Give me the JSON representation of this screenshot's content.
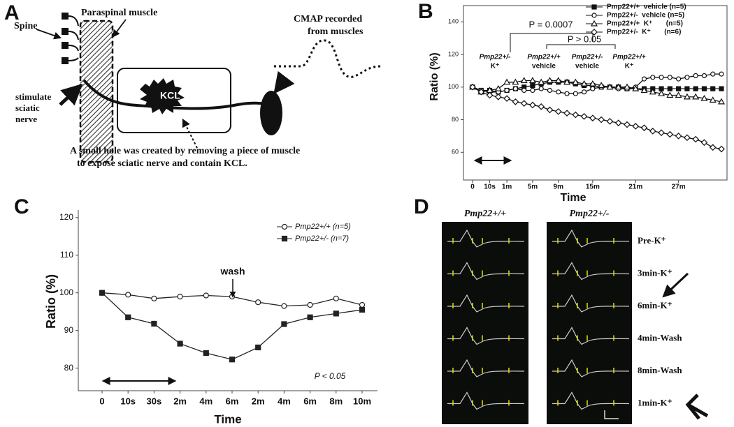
{
  "panel_labels": [
    "A",
    "B",
    "C",
    "D"
  ],
  "diagram": {
    "spine": "Spine",
    "muscle": "Paraspinal muscle",
    "stimulate": [
      "stimulate",
      "sciatic",
      "nerve"
    ],
    "kcl": "KCL",
    "cmap": [
      "CMAP recorded",
      "from muscles"
    ],
    "caption": [
      "A small hole was created by removing a piece of muscle",
      "to expose sciatic nerve and contain KCL."
    ]
  },
  "chart_data": [
    {
      "type": "line",
      "x_label": "Time",
      "y_label": "Ratio (%)",
      "categories": [
        "0",
        null,
        "10s",
        null,
        "1m",
        null,
        null,
        "5m",
        null,
        null,
        "9m",
        null,
        null,
        null,
        "15m",
        null,
        null,
        null,
        null,
        "21m",
        null,
        null,
        null,
        null,
        "27m",
        null,
        null,
        null,
        null,
        null
      ],
      "series": [
        {
          "name": "Pmp22+/+  vehicle (n=5)",
          "color": "#111111",
          "marker": "square",
          "values": [
            100,
            98,
            98,
            97,
            98,
            99,
            100,
            101,
            102,
            103,
            103,
            103,
            102,
            101,
            101,
            100,
            100,
            100,
            99,
            99,
            99,
            99,
            99,
            99,
            99,
            99,
            99,
            99,
            99,
            99
          ]
        },
        {
          "name": "Pmp22+/-  vehicle (n=5)",
          "color": "#111111",
          "marker": "circle",
          "values": [
            100,
            98,
            97,
            97,
            98,
            99,
            98,
            98,
            99,
            98,
            97,
            96,
            96,
            97,
            99,
            100,
            100,
            99,
            99,
            100,
            105,
            106,
            106,
            106,
            105,
            106,
            107,
            107,
            108,
            108
          ]
        },
        {
          "name": "Pmp22+/+  K⁺       (n=5)",
          "color": "#111111",
          "marker": "triangle",
          "values": [
            100,
            97,
            98,
            99,
            103,
            103,
            104,
            104,
            103,
            104,
            104,
            103,
            103,
            102,
            102,
            101,
            100,
            100,
            100,
            99,
            98,
            97,
            96,
            95,
            95,
            94,
            94,
            93,
            92,
            91
          ]
        },
        {
          "name": "Pmp22+/-  K⁺       (n=6)",
          "color": "#111111",
          "marker": "diamond",
          "values": [
            100,
            97,
            95,
            94,
            93,
            91,
            90,
            89,
            88,
            86,
            85,
            84,
            83,
            82,
            81,
            80,
            79,
            78,
            77,
            76,
            75,
            73,
            72,
            71,
            70,
            69,
            68,
            66,
            63,
            62
          ]
        }
      ],
      "ylim": [
        43,
        150
      ],
      "yticks": [
        60,
        80,
        100,
        120,
        140
      ],
      "legend": "upper right",
      "annotations": [
        "P = 0.0007",
        "P > 0.05"
      ],
      "group_labels": [
        [
          "Pmp22+/-",
          "K⁺"
        ],
        [
          "Pmp22+/+",
          "vehicle"
        ],
        [
          "Pmp22+/-",
          "vehicle"
        ],
        [
          "Pmp22+/+",
          "K⁺"
        ]
      ]
    },
    {
      "type": "line",
      "x_label": "Time",
      "y_label": "Ratio (%)",
      "categories": [
        "0",
        "10s",
        "30s",
        "2m",
        "4m",
        "6m",
        "2m",
        "4m",
        "6m",
        "8m",
        "10m"
      ],
      "series": [
        {
          "name": "Pmp22+/+ (n=5)",
          "color": "#222222",
          "marker": "circle",
          "values": [
            100,
            99.5,
            98.5,
            99,
            99.3,
            99,
            97.5,
            96.5,
            96.8,
            98.5,
            96.8
          ]
        },
        {
          "name": "Pmp22+/- (n=7)",
          "color": "#222222",
          "marker": "square",
          "values": [
            100,
            93.5,
            91.8,
            86.5,
            84,
            82.3,
            85.5,
            91.7,
            93.5,
            94.5,
            95.5
          ]
        }
      ],
      "ylim": [
        74,
        122
      ],
      "yticks": [
        80,
        90,
        100,
        110,
        120
      ],
      "legend": "upper right",
      "annotations": [
        "wash",
        "P < 0.05"
      ]
    }
  ],
  "traces": {
    "columns": [
      "Pmp22+/+",
      "Pmp22+/-"
    ],
    "rows": [
      "Pre-K⁺",
      "3min-K⁺",
      "6min-K⁺",
      "4min-Wash",
      "8min-Wash",
      "1min-K⁺"
    ]
  }
}
